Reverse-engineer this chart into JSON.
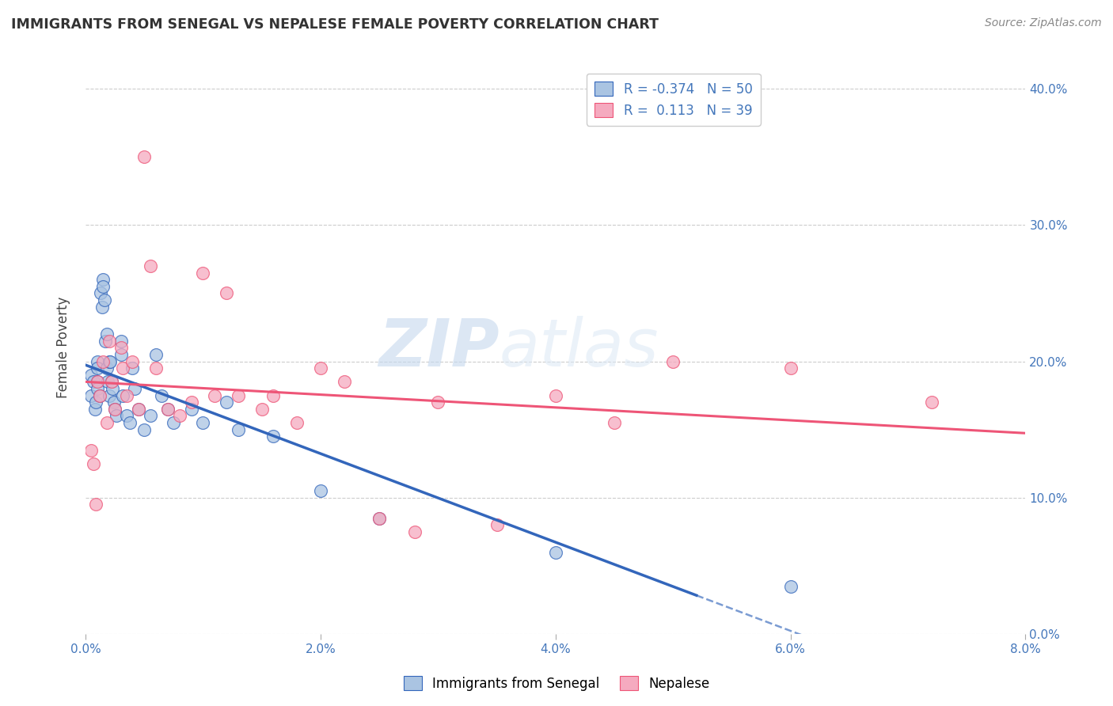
{
  "title": "IMMIGRANTS FROM SENEGAL VS NEPALESE FEMALE POVERTY CORRELATION CHART",
  "source": "Source: ZipAtlas.com",
  "xlabel_senegal": "Immigrants from Senegal",
  "xlabel_nepalese": "Nepalese",
  "ylabel": "Female Poverty",
  "R_senegal": -0.374,
  "N_senegal": 50,
  "R_nepalese": 0.113,
  "N_nepalese": 39,
  "xlim": [
    0.0,
    0.08
  ],
  "ylim": [
    0.0,
    0.42
  ],
  "yticks": [
    0.0,
    0.1,
    0.2,
    0.3,
    0.4
  ],
  "xticks": [
    0.0,
    0.02,
    0.04,
    0.06,
    0.08
  ],
  "color_senegal": "#aac4e2",
  "color_nepalese": "#f5aabf",
  "line_color_senegal": "#3366bb",
  "line_color_nepalese": "#ee5577",
  "background_color": "#ffffff",
  "watermark_zip": "ZIP",
  "watermark_atlas": "atlas",
  "senegal_x": [
    0.0005,
    0.0005,
    0.0007,
    0.0008,
    0.0009,
    0.001,
    0.001,
    0.001,
    0.001,
    0.0012,
    0.0013,
    0.0014,
    0.0015,
    0.0015,
    0.0016,
    0.0017,
    0.0018,
    0.0018,
    0.0019,
    0.002,
    0.002,
    0.0021,
    0.0022,
    0.0023,
    0.0024,
    0.0025,
    0.0026,
    0.003,
    0.003,
    0.0032,
    0.0035,
    0.0038,
    0.004,
    0.0042,
    0.0045,
    0.005,
    0.0055,
    0.006,
    0.0065,
    0.007,
    0.0075,
    0.009,
    0.01,
    0.012,
    0.013,
    0.016,
    0.02,
    0.025,
    0.04,
    0.06
  ],
  "senegal_y": [
    0.19,
    0.175,
    0.185,
    0.165,
    0.17,
    0.2,
    0.195,
    0.185,
    0.18,
    0.175,
    0.25,
    0.24,
    0.26,
    0.255,
    0.245,
    0.215,
    0.22,
    0.195,
    0.185,
    0.2,
    0.175,
    0.2,
    0.185,
    0.18,
    0.17,
    0.165,
    0.16,
    0.215,
    0.205,
    0.175,
    0.16,
    0.155,
    0.195,
    0.18,
    0.165,
    0.15,
    0.16,
    0.205,
    0.175,
    0.165,
    0.155,
    0.165,
    0.155,
    0.17,
    0.15,
    0.145,
    0.105,
    0.085,
    0.06,
    0.035
  ],
  "nepalese_x": [
    0.0005,
    0.0007,
    0.0009,
    0.001,
    0.0012,
    0.0015,
    0.0018,
    0.002,
    0.0022,
    0.0025,
    0.003,
    0.0032,
    0.0035,
    0.004,
    0.0045,
    0.005,
    0.0055,
    0.006,
    0.007,
    0.008,
    0.009,
    0.01,
    0.011,
    0.012,
    0.013,
    0.015,
    0.016,
    0.018,
    0.02,
    0.022,
    0.025,
    0.028,
    0.03,
    0.035,
    0.04,
    0.045,
    0.05,
    0.06,
    0.072
  ],
  "nepalese_y": [
    0.135,
    0.125,
    0.095,
    0.185,
    0.175,
    0.2,
    0.155,
    0.215,
    0.185,
    0.165,
    0.21,
    0.195,
    0.175,
    0.2,
    0.165,
    0.35,
    0.27,
    0.195,
    0.165,
    0.16,
    0.17,
    0.265,
    0.175,
    0.25,
    0.175,
    0.165,
    0.175,
    0.155,
    0.195,
    0.185,
    0.085,
    0.075,
    0.17,
    0.08,
    0.175,
    0.155,
    0.2,
    0.195,
    0.17
  ]
}
